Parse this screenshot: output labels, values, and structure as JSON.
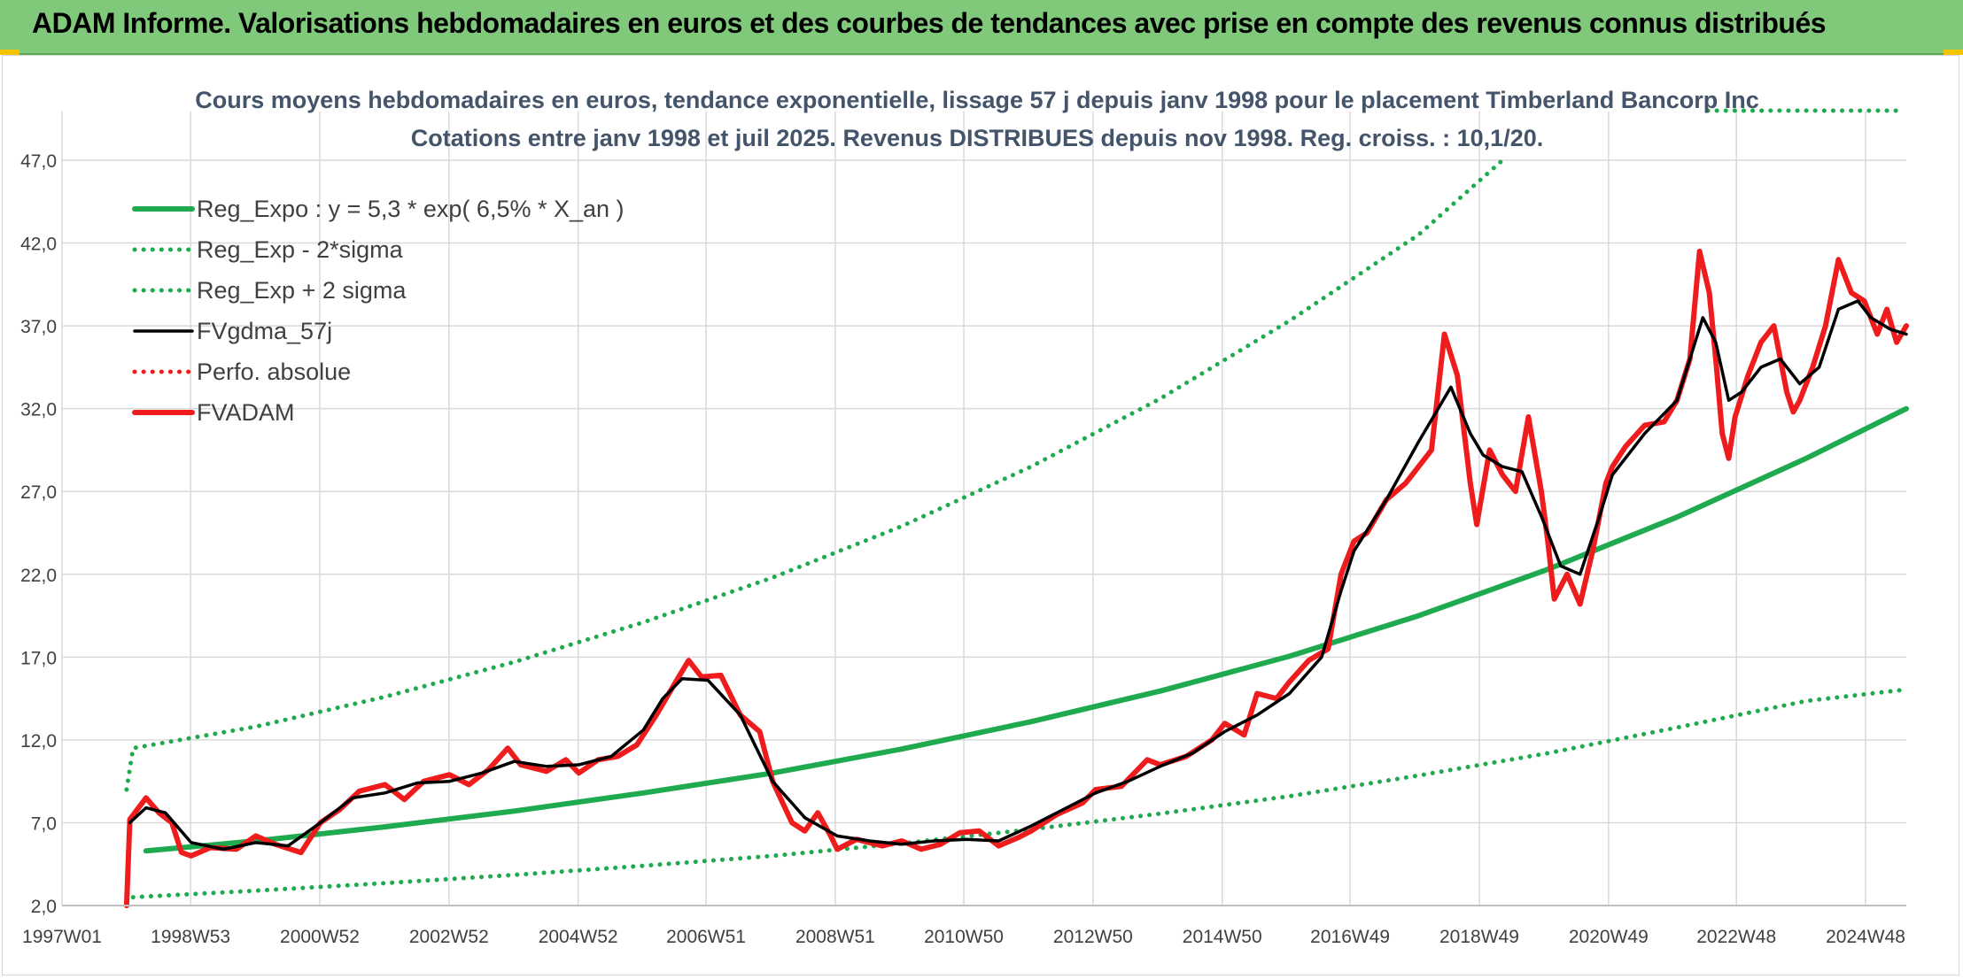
{
  "header": {
    "title": "ADAM Informe. Valorisations hebdomadaires en euros et des courbes de tendances avec prise en compte des revenus connus distribués"
  },
  "colors": {
    "header_bg": "#80c97a",
    "reg_expo": "#1faa4f",
    "fvgdma": "#000000",
    "fvadam": "#ee1c1c",
    "perfo": "#ee1c1c",
    "grid": "#d9d9d9"
  },
  "chart_data": {
    "type": "line",
    "title": "Cours moyens hebdomadaires en euros, tendance exponentielle, lissage 57 j depuis janv 1998 pour le placement Timberland Bancorp Inc",
    "subtitle": "Cotations entre janv 1998 et juil 2025. Revenus DISTRIBUES depuis nov 1998. Reg. croiss. : 10,1/20.",
    "xlabel": "",
    "ylabel": "",
    "ylim": [
      2,
      47
    ],
    "xlim": [
      1997.0,
      2025.55
    ],
    "grid": true,
    "legend_position": "top-left",
    "y_ticks": [
      "2,0",
      "7,0",
      "12,0",
      "17,0",
      "22,0",
      "27,0",
      "32,0",
      "37,0",
      "42,0",
      "47,0"
    ],
    "x_ticks": [
      {
        "label": "1997W01",
        "x": 1997.0
      },
      {
        "label": "1998W53",
        "x": 1998.99
      },
      {
        "label": "2000W52",
        "x": 2000.99
      },
      {
        "label": "2002W52",
        "x": 2002.99
      },
      {
        "label": "2004W52",
        "x": 2004.99
      },
      {
        "label": "2006W51",
        "x": 2006.97
      },
      {
        "label": "2008W51",
        "x": 2008.97
      },
      {
        "label": "2010W50",
        "x": 2010.96
      },
      {
        "label": "2012W50",
        "x": 2012.96
      },
      {
        "label": "2014W50",
        "x": 2014.96
      },
      {
        "label": "2016W49",
        "x": 2016.94
      },
      {
        "label": "2018W49",
        "x": 2018.94
      },
      {
        "label": "2020W49",
        "x": 2020.94
      },
      {
        "label": "2022W48",
        "x": 2022.92
      },
      {
        "label": "2024W48",
        "x": 2024.92
      }
    ],
    "series": [
      {
        "name": "Reg_Expo : y = 5,3 * exp( 6,5% *  X_an )",
        "style": "solid-thick",
        "color": "#1faa4f",
        "points": [
          [
            1998.3,
            5.3
          ],
          [
            2000,
            5.9
          ],
          [
            2002,
            6.75
          ],
          [
            2004,
            7.7
          ],
          [
            2006,
            8.8
          ],
          [
            2008,
            10.0
          ],
          [
            2010,
            11.45
          ],
          [
            2012,
            13.1
          ],
          [
            2014,
            14.95
          ],
          [
            2016,
            17.05
          ],
          [
            2018,
            19.5
          ],
          [
            2020,
            22.3
          ],
          [
            2022,
            25.45
          ],
          [
            2024,
            29.0
          ],
          [
            2025.55,
            32.0
          ]
        ]
      },
      {
        "name": "Reg_Exp - 2*sigma",
        "style": "dotted",
        "color": "#1faa4f",
        "points": [
          [
            1998.1,
            2.5
          ],
          [
            2000,
            2.9
          ],
          [
            2002,
            3.35
          ],
          [
            2004,
            3.85
          ],
          [
            2006,
            4.4
          ],
          [
            2008,
            5.0
          ],
          [
            2010,
            5.75
          ],
          [
            2012,
            6.6
          ],
          [
            2014,
            7.55
          ],
          [
            2016,
            8.6
          ],
          [
            2018,
            9.85
          ],
          [
            2020,
            11.2
          ],
          [
            2022,
            12.75
          ],
          [
            2024,
            14.35
          ],
          [
            2025.45,
            15.0
          ]
        ]
      },
      {
        "name": "Reg_Exp + 2 sigma",
        "style": "dotted",
        "color": "#1faa4f",
        "points": [
          [
            1998.0,
            9.0
          ],
          [
            1998.1,
            11.5
          ],
          [
            2000,
            12.8
          ],
          [
            2002,
            14.6
          ],
          [
            2004,
            16.7
          ],
          [
            2006,
            19.1
          ],
          [
            2008,
            21.8
          ],
          [
            2010,
            24.9
          ],
          [
            2012,
            28.5
          ],
          [
            2014,
            32.6
          ],
          [
            2016,
            37.3
          ],
          [
            2018,
            42.5
          ],
          [
            2019.3,
            47.0
          ]
        ]
      },
      {
        "name": "FVgdma_57j",
        "style": "solid",
        "color": "#000000",
        "points": [
          [
            1998.05,
            7.0
          ],
          [
            1998.3,
            7.9
          ],
          [
            1998.6,
            7.6
          ],
          [
            1999.0,
            5.8
          ],
          [
            1999.5,
            5.4
          ],
          [
            2000.0,
            5.8
          ],
          [
            2000.5,
            5.6
          ],
          [
            2001.0,
            7.0
          ],
          [
            2001.5,
            8.5
          ],
          [
            2002.0,
            8.8
          ],
          [
            2002.5,
            9.4
          ],
          [
            2003.0,
            9.5
          ],
          [
            2003.5,
            10.0
          ],
          [
            2004.0,
            10.7
          ],
          [
            2004.5,
            10.4
          ],
          [
            2005.0,
            10.5
          ],
          [
            2005.5,
            11.0
          ],
          [
            2006.0,
            12.6
          ],
          [
            2006.3,
            14.5
          ],
          [
            2006.6,
            15.7
          ],
          [
            2007.0,
            15.6
          ],
          [
            2007.5,
            13.5
          ],
          [
            2008.0,
            9.5
          ],
          [
            2008.5,
            7.3
          ],
          [
            2009.0,
            6.2
          ],
          [
            2009.5,
            5.9
          ],
          [
            2010.0,
            5.7
          ],
          [
            2010.5,
            5.9
          ],
          [
            2011.0,
            6.0
          ],
          [
            2011.5,
            5.9
          ],
          [
            2012.0,
            6.8
          ],
          [
            2012.5,
            7.8
          ],
          [
            2013.0,
            8.8
          ],
          [
            2013.5,
            9.5
          ],
          [
            2014.0,
            10.4
          ],
          [
            2014.5,
            11.2
          ],
          [
            2015.0,
            12.5
          ],
          [
            2015.5,
            13.5
          ],
          [
            2016.0,
            14.8
          ],
          [
            2016.5,
            17.0
          ],
          [
            2016.8,
            21.0
          ],
          [
            2017.0,
            23.4
          ],
          [
            2017.5,
            26.5
          ],
          [
            2018.0,
            30.0
          ],
          [
            2018.5,
            33.3
          ],
          [
            2018.8,
            30.5
          ],
          [
            2019.0,
            29.2
          ],
          [
            2019.3,
            28.5
          ],
          [
            2019.6,
            28.2
          ],
          [
            2019.9,
            25.5
          ],
          [
            2020.2,
            22.5
          ],
          [
            2020.5,
            22.0
          ],
          [
            2020.8,
            25.5
          ],
          [
            2021.0,
            28.0
          ],
          [
            2021.5,
            30.5
          ],
          [
            2022.0,
            32.5
          ],
          [
            2022.4,
            37.5
          ],
          [
            2022.6,
            36.0
          ],
          [
            2022.8,
            32.5
          ],
          [
            2023.0,
            33.0
          ],
          [
            2023.3,
            34.5
          ],
          [
            2023.6,
            35.0
          ],
          [
            2023.9,
            33.5
          ],
          [
            2024.2,
            34.5
          ],
          [
            2024.5,
            38.0
          ],
          [
            2024.8,
            38.5
          ],
          [
            2025.0,
            37.5
          ],
          [
            2025.3,
            36.8
          ],
          [
            2025.55,
            36.5
          ]
        ]
      },
      {
        "name": "Perfo. absolue",
        "style": "dotted",
        "color": "#ee1c1c",
        "points": []
      },
      {
        "name": "FVADAM",
        "style": "solid-thick",
        "color": "#ee1c1c",
        "points": [
          [
            1998.0,
            2.0
          ],
          [
            1998.05,
            7.2
          ],
          [
            1998.3,
            8.5
          ],
          [
            1998.5,
            7.6
          ],
          [
            1998.7,
            7.0
          ],
          [
            1998.85,
            5.2
          ],
          [
            1999.0,
            5.0
          ],
          [
            1999.3,
            5.5
          ],
          [
            1999.7,
            5.4
          ],
          [
            2000.0,
            6.2
          ],
          [
            2000.3,
            5.7
          ],
          [
            2000.7,
            5.2
          ],
          [
            2001.0,
            7.0
          ],
          [
            2001.3,
            7.8
          ],
          [
            2001.6,
            8.9
          ],
          [
            2002.0,
            9.3
          ],
          [
            2002.3,
            8.4
          ],
          [
            2002.6,
            9.5
          ],
          [
            2003.0,
            9.9
          ],
          [
            2003.3,
            9.3
          ],
          [
            2003.6,
            10.2
          ],
          [
            2003.9,
            11.5
          ],
          [
            2004.1,
            10.5
          ],
          [
            2004.5,
            10.1
          ],
          [
            2004.8,
            10.8
          ],
          [
            2005.0,
            10.0
          ],
          [
            2005.3,
            10.8
          ],
          [
            2005.6,
            11.0
          ],
          [
            2005.9,
            11.7
          ],
          [
            2006.2,
            13.5
          ],
          [
            2006.5,
            15.5
          ],
          [
            2006.7,
            16.8
          ],
          [
            2006.9,
            15.8
          ],
          [
            2007.2,
            15.9
          ],
          [
            2007.5,
            13.5
          ],
          [
            2007.8,
            12.5
          ],
          [
            2008.0,
            9.5
          ],
          [
            2008.3,
            7.0
          ],
          [
            2008.5,
            6.5
          ],
          [
            2008.7,
            7.6
          ],
          [
            2008.9,
            6.2
          ],
          [
            2009.0,
            5.4
          ],
          [
            2009.3,
            6.0
          ],
          [
            2009.7,
            5.6
          ],
          [
            2010.0,
            5.9
          ],
          [
            2010.3,
            5.4
          ],
          [
            2010.6,
            5.7
          ],
          [
            2010.9,
            6.4
          ],
          [
            2011.2,
            6.5
          ],
          [
            2011.5,
            5.6
          ],
          [
            2011.8,
            6.1
          ],
          [
            2012.0,
            6.5
          ],
          [
            2012.4,
            7.5
          ],
          [
            2012.8,
            8.2
          ],
          [
            2013.0,
            9.0
          ],
          [
            2013.4,
            9.2
          ],
          [
            2013.8,
            10.8
          ],
          [
            2014.0,
            10.5
          ],
          [
            2014.4,
            11.0
          ],
          [
            2014.8,
            12.0
          ],
          [
            2015.0,
            13.0
          ],
          [
            2015.3,
            12.3
          ],
          [
            2015.5,
            14.8
          ],
          [
            2015.8,
            14.5
          ],
          [
            2016.0,
            15.5
          ],
          [
            2016.3,
            16.8
          ],
          [
            2016.6,
            17.5
          ],
          [
            2016.8,
            22.0
          ],
          [
            2017.0,
            24.0
          ],
          [
            2017.2,
            24.5
          ],
          [
            2017.5,
            26.5
          ],
          [
            2017.8,
            27.5
          ],
          [
            2018.0,
            28.5
          ],
          [
            2018.2,
            29.5
          ],
          [
            2018.4,
            36.5
          ],
          [
            2018.6,
            34.0
          ],
          [
            2018.8,
            27.5
          ],
          [
            2018.9,
            25.0
          ],
          [
            2019.1,
            29.5
          ],
          [
            2019.3,
            28.0
          ],
          [
            2019.5,
            27.0
          ],
          [
            2019.7,
            31.5
          ],
          [
            2019.9,
            27.0
          ],
          [
            2020.0,
            24.0
          ],
          [
            2020.1,
            20.5
          ],
          [
            2020.3,
            22.0
          ],
          [
            2020.5,
            20.2
          ],
          [
            2020.7,
            23.5
          ],
          [
            2020.9,
            27.5
          ],
          [
            2021.0,
            28.5
          ],
          [
            2021.2,
            29.7
          ],
          [
            2021.5,
            31.0
          ],
          [
            2021.8,
            31.2
          ],
          [
            2022.0,
            32.5
          ],
          [
            2022.2,
            35.0
          ],
          [
            2022.35,
            41.5
          ],
          [
            2022.5,
            39.0
          ],
          [
            2022.6,
            35.0
          ],
          [
            2022.7,
            30.5
          ],
          [
            2022.8,
            29.0
          ],
          [
            2022.9,
            31.5
          ],
          [
            2023.1,
            34.0
          ],
          [
            2023.3,
            36.0
          ],
          [
            2023.5,
            37.0
          ],
          [
            2023.7,
            33.0
          ],
          [
            2023.8,
            31.8
          ],
          [
            2023.9,
            32.5
          ],
          [
            2024.1,
            34.5
          ],
          [
            2024.3,
            37.0
          ],
          [
            2024.5,
            41.0
          ],
          [
            2024.7,
            39.0
          ],
          [
            2024.9,
            38.5
          ],
          [
            2025.1,
            36.5
          ],
          [
            2025.25,
            38.0
          ],
          [
            2025.4,
            36.0
          ],
          [
            2025.55,
            37.0
          ]
        ]
      }
    ]
  }
}
